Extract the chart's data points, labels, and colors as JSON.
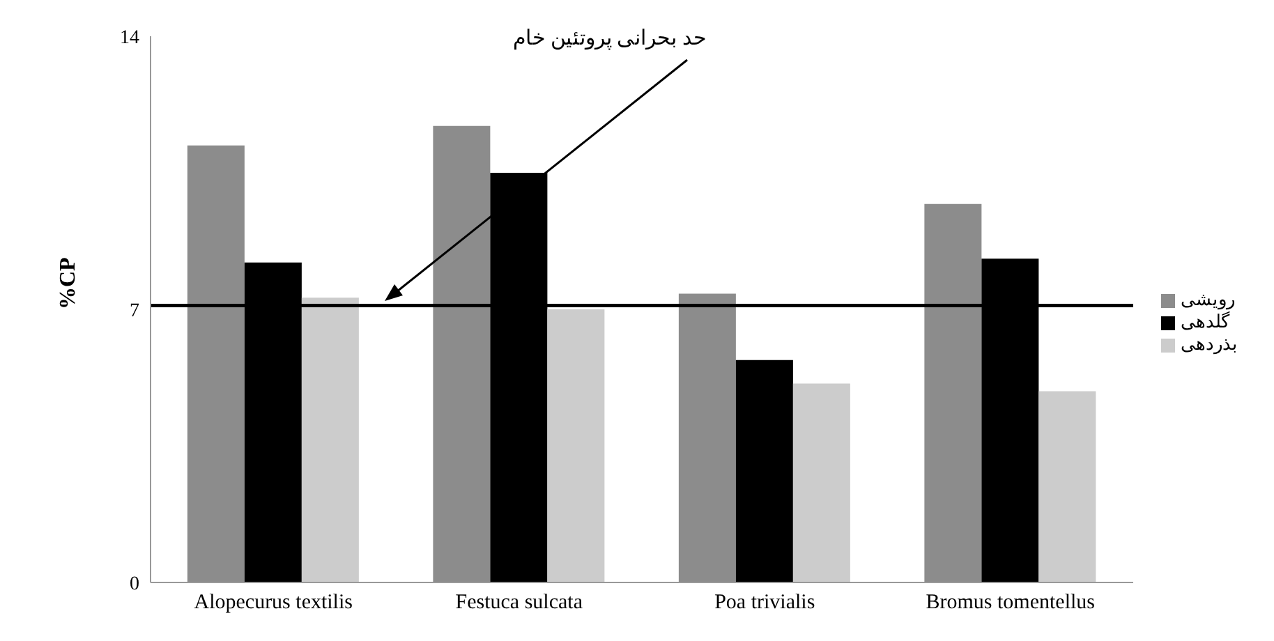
{
  "chart_data": {
    "type": "bar",
    "ylabel": "%CP",
    "categories": [
      "Alopecurus textilis",
      "Festuca sulcata",
      "Poa trivialis",
      "Bromus tomentellus"
    ],
    "series": [
      {
        "name": "رویشی",
        "color": "#8c8c8c",
        "values": [
          11.2,
          11.7,
          7.4,
          9.7
        ]
      },
      {
        "name": "گلدهی",
        "color": "#000000",
        "values": [
          8.2,
          10.5,
          5.7,
          8.3
        ]
      },
      {
        "name": "بذردهی",
        "color": "#cccccc",
        "values": [
          7.3,
          7.0,
          5.1,
          4.9
        ]
      }
    ],
    "ylim": [
      0,
      14
    ],
    "yticks": [
      0,
      7,
      14
    ],
    "grid": false,
    "legend": "right",
    "ref_lines": [
      {
        "axis": "y",
        "value": 7.1,
        "color": "#000000"
      }
    ],
    "annotations": [
      "حد بحرانی پروتئین خام"
    ]
  }
}
